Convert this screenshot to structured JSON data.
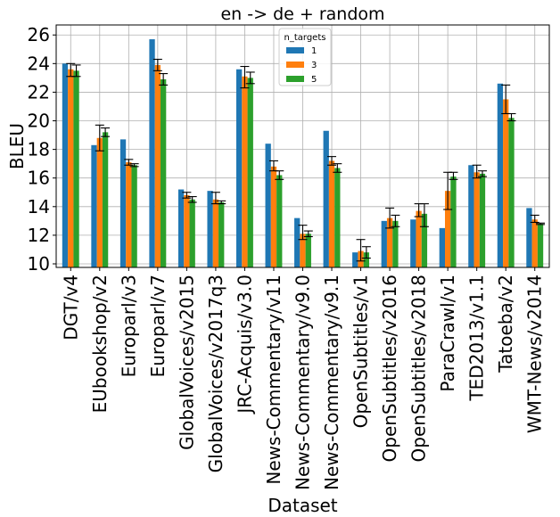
{
  "chart_data": {
    "type": "bar",
    "title": "en -> de + random",
    "xlabel": "Dataset",
    "ylabel": "BLEU",
    "ylim": [
      9.75,
      26.7
    ],
    "yticks": [
      10,
      12,
      14,
      16,
      18,
      20,
      22,
      24,
      26
    ],
    "grid": true,
    "legend": {
      "title": "n_targets",
      "placement": "top-center"
    },
    "categories": [
      "DGT/v4",
      "EUbookshop/v2",
      "Europarl/v3",
      "Europarl/v7",
      "GlobalVoices/v2015",
      "GlobalVoices/v2017q3",
      "JRC-Acquis/v3.0",
      "News-Commentary/v11",
      "News-Commentary/v9.0",
      "News-Commentary/v9.1",
      "OpenSubtitles/v1",
      "OpenSubtitles/v2016",
      "OpenSubtitles/v2018",
      "ParaCrawl/v1",
      "TED2013/v1.1",
      "Tatoeba/v2",
      "WMT-News/v2014"
    ],
    "series": [
      {
        "name": "1",
        "color": "#1f77b4",
        "values": [
          24.0,
          18.3,
          18.7,
          25.7,
          15.2,
          15.1,
          23.6,
          18.4,
          13.2,
          19.3,
          10.8,
          13.0,
          13.1,
          12.5,
          16.9,
          22.6,
          13.9
        ],
        "err_low": [
          null,
          null,
          null,
          null,
          null,
          null,
          null,
          null,
          null,
          null,
          null,
          null,
          null,
          null,
          null,
          null,
          null
        ],
        "err_high": [
          null,
          null,
          null,
          null,
          null,
          null,
          null,
          null,
          null,
          null,
          null,
          null,
          null,
          null,
          null,
          null,
          null
        ]
      },
      {
        "name": "3",
        "color": "#ff7f0e",
        "values": [
          23.6,
          18.8,
          17.1,
          23.9,
          14.8,
          14.5,
          23.1,
          16.8,
          12.1,
          17.2,
          10.9,
          13.2,
          13.7,
          15.1,
          16.4,
          21.5,
          13.1
        ],
        "err_low": [
          23.1,
          17.9,
          16.9,
          23.5,
          14.6,
          14.2,
          22.3,
          16.5,
          11.7,
          16.9,
          10.2,
          12.5,
          13.3,
          13.8,
          16.0,
          20.5,
          12.9
        ],
        "err_high": [
          24.0,
          19.7,
          17.3,
          24.3,
          15.0,
          15.0,
          23.8,
          17.2,
          12.7,
          17.5,
          11.7,
          13.9,
          14.2,
          16.4,
          16.9,
          22.5,
          13.4
        ]
      },
      {
        "name": "5",
        "color": "#2ca02c",
        "values": [
          23.5,
          19.2,
          16.9,
          22.9,
          14.5,
          14.3,
          23.0,
          16.2,
          12.1,
          16.7,
          10.8,
          13.0,
          13.5,
          16.1,
          16.3,
          20.2,
          12.8
        ],
        "err_low": [
          23.1,
          18.9,
          16.8,
          22.5,
          14.3,
          14.2,
          22.6,
          15.9,
          11.9,
          16.4,
          10.4,
          12.6,
          12.6,
          15.9,
          16.1,
          20.0,
          12.75
        ],
        "err_high": [
          23.9,
          19.5,
          17.0,
          23.3,
          14.7,
          14.4,
          23.4,
          16.5,
          12.3,
          17.0,
          11.2,
          13.4,
          14.2,
          16.4,
          16.5,
          20.5,
          12.85
        ]
      }
    ]
  }
}
